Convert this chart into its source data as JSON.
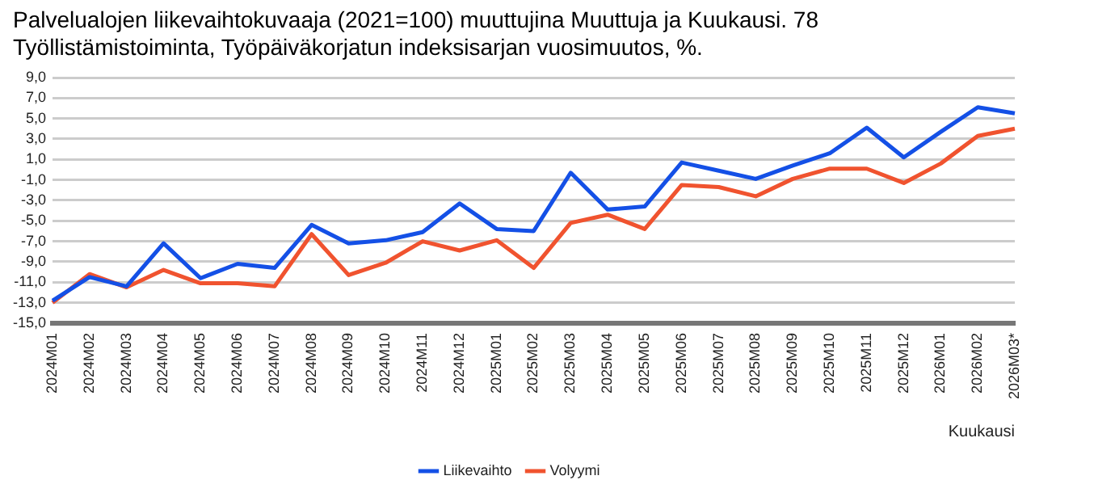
{
  "chart_data": {
    "type": "line",
    "title": "Palvelualojen liikevaihtokuvaaja (2021=100) muuttujina Muuttuja ja Kuukausi. 78 Työllistämistoiminta, Työpäiväkorjatun indeksisarjan vuosimuutos, %.",
    "xlabel": "Kuukausi",
    "categories": [
      "2024M01",
      "2024M02",
      "2024M03",
      "2024M04",
      "2024M05",
      "2024M06",
      "2024M07",
      "2024M08",
      "2024M09",
      "2024M10",
      "2024M11",
      "2024M12",
      "2025M01",
      "2025M02",
      "2025M03",
      "2025M04",
      "2025M05",
      "2025M06",
      "2025M07",
      "2025M08",
      "2025M09",
      "2025M10",
      "2025M11",
      "2025M12",
      "2026M01",
      "2026M02",
      "2026M03*"
    ],
    "series": [
      {
        "name": "Liikevaihto",
        "color": "#1450e6",
        "values": [
          -12.8,
          -10.5,
          -11.4,
          -7.2,
          -10.6,
          -9.2,
          -9.6,
          -5.4,
          -7.2,
          -6.9,
          -6.1,
          -3.3,
          -5.8,
          -6.0,
          -0.3,
          -3.9,
          -3.6,
          0.7,
          -0.1,
          -0.9,
          0.4,
          1.6,
          4.1,
          1.2,
          3.7,
          6.1,
          5.5
        ]
      },
      {
        "name": "Volyymi",
        "color": "#f0532f",
        "values": [
          -13.0,
          -10.2,
          -11.5,
          -9.8,
          -11.1,
          -11.1,
          -11.4,
          -6.3,
          -10.3,
          -9.1,
          -7.0,
          -7.9,
          -6.9,
          -9.6,
          -5.2,
          -4.4,
          -5.8,
          -1.5,
          -1.7,
          -2.6,
          -0.9,
          0.1,
          0.1,
          -1.3,
          0.6,
          3.3,
          4.0
        ]
      }
    ],
    "ylim": [
      -15,
      9
    ],
    "yticks": [
      {
        "value": -15,
        "label": "-15,0"
      },
      {
        "value": -13,
        "label": "-13,0"
      },
      {
        "value": -11,
        "label": "-11,0"
      },
      {
        "value": -9,
        "label": "-9,0"
      },
      {
        "value": -7,
        "label": "-7,0"
      },
      {
        "value": -5,
        "label": "-5,0"
      },
      {
        "value": -3,
        "label": "-3,0"
      },
      {
        "value": -1,
        "label": "-1,0"
      },
      {
        "value": 1,
        "label": "1,0"
      },
      {
        "value": 3,
        "label": "3,0"
      },
      {
        "value": 5,
        "label": "5,0"
      },
      {
        "value": 7,
        "label": "7,0"
      },
      {
        "value": 9,
        "label": "9,0"
      }
    ],
    "grid": "y",
    "legend": "bottom",
    "marker": "none",
    "line_style": "solid"
  }
}
